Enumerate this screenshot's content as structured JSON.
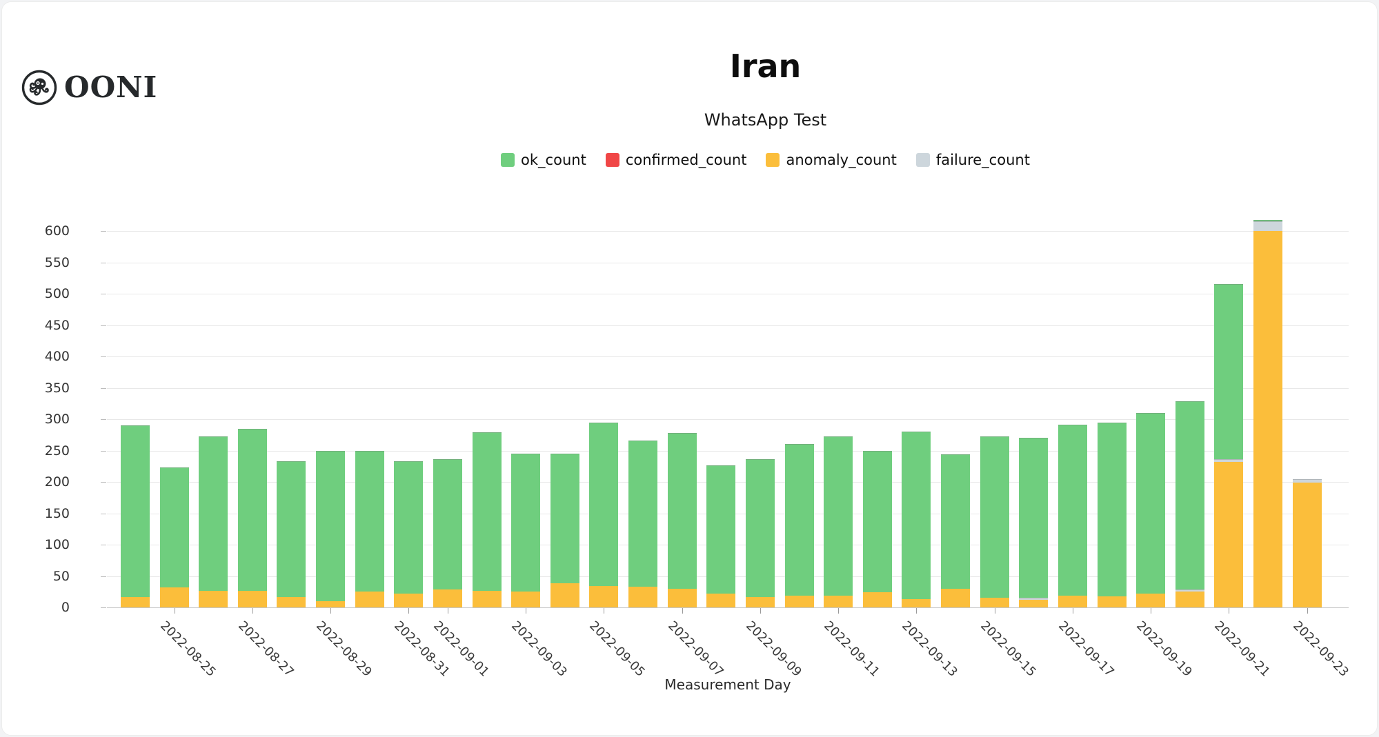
{
  "header": {
    "brand": "OONI",
    "title": "Iran",
    "subtitle": "WhatsApp Test"
  },
  "legend": [
    {
      "label": "ok_count",
      "color": "#6FCE7E"
    },
    {
      "label": "confirmed_count",
      "color": "#F04646"
    },
    {
      "label": "anomaly_count",
      "color": "#FBBE3B"
    },
    {
      "label": "failure_count",
      "color": "#CDD6DC"
    }
  ],
  "chart_data": {
    "type": "bar",
    "stacked": true,
    "title": "Iran",
    "subtitle": "WhatsApp Test",
    "xlabel": "Measurement Day",
    "ylabel": "",
    "ylim": [
      0,
      600
    ],
    "ytick_step": 50,
    "grid": true,
    "legend_position": "top",
    "categories": [
      "2022-08-24",
      "2022-08-25",
      "2022-08-26",
      "2022-08-27",
      "2022-08-28",
      "2022-08-29",
      "2022-08-30",
      "2022-08-31",
      "2022-09-01",
      "2022-09-02",
      "2022-09-03",
      "2022-09-04",
      "2022-09-05",
      "2022-09-06",
      "2022-09-07",
      "2022-09-08",
      "2022-09-09",
      "2022-09-10",
      "2022-09-11",
      "2022-09-12",
      "2022-09-13",
      "2022-09-14",
      "2022-09-15",
      "2022-09-16",
      "2022-09-17",
      "2022-09-18",
      "2022-09-19",
      "2022-09-20",
      "2022-09-21",
      "2022-09-22",
      "2022-09-23"
    ],
    "x_tick_labels_shown": [
      "2022-08-25",
      "2022-08-27",
      "2022-08-29",
      "2022-08-31",
      "2022-09-01",
      "2022-09-03",
      "2022-09-05",
      "2022-09-07",
      "2022-09-09",
      "2022-09-11",
      "2022-09-13",
      "2022-09-15",
      "2022-09-17",
      "2022-09-19",
      "2022-09-21",
      "2022-09-23"
    ],
    "series": [
      {
        "name": "anomaly_count",
        "color": "#FBBE3B",
        "values": [
          17,
          32,
          26,
          26,
          17,
          10,
          25,
          22,
          29,
          26,
          25,
          39,
          34,
          33,
          30,
          22,
          17,
          19,
          19,
          24,
          13,
          30,
          15,
          12,
          19,
          18,
          22,
          25,
          232,
          600,
          199
        ]
      },
      {
        "name": "confirmed_count",
        "color": "#F04646",
        "values": [
          0,
          0,
          0,
          0,
          0,
          0,
          0,
          0,
          0,
          0,
          0,
          0,
          0,
          0,
          0,
          0,
          0,
          0,
          0,
          0,
          0,
          0,
          0,
          0,
          0,
          0,
          0,
          0,
          0,
          0,
          0
        ]
      },
      {
        "name": "failure_count",
        "color": "#CDD6DC",
        "values": [
          0,
          0,
          0,
          0,
          0,
          0,
          0,
          0,
          0,
          0,
          0,
          0,
          0,
          0,
          0,
          0,
          0,
          0,
          0,
          0,
          0,
          0,
          0,
          3,
          0,
          0,
          0,
          4,
          4,
          15,
          5
        ]
      },
      {
        "name": "ok_count",
        "color": "#6FCE7E",
        "values": [
          273,
          191,
          247,
          259,
          216,
          240,
          225,
          211,
          207,
          253,
          220,
          206,
          260,
          233,
          248,
          204,
          219,
          241,
          254,
          226,
          267,
          214,
          257,
          255,
          272,
          277,
          288,
          300,
          279,
          3,
          0
        ]
      }
    ],
    "y_tick_labels": [
      "0",
      "50",
      "100",
      "150",
      "200",
      "250",
      "300",
      "350",
      "400",
      "450",
      "500",
      "550",
      "600"
    ]
  }
}
